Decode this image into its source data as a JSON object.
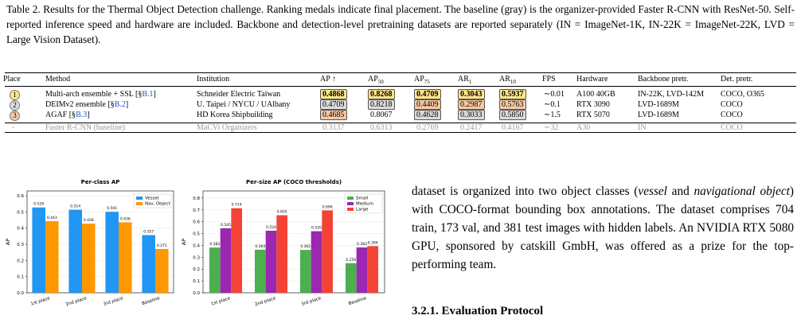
{
  "caption": "Table 2. Results for the Thermal Object Detection challenge. Ranking medals indicate final placement. The baseline (gray) is the organizer-provided Faster R-CNN with ResNet-50. Self-reported inference speed and hardware are included. Backbone and detection-level pretraining datasets are reported separately (IN = ImageNet-1K, IN-22K = ImageNet-22K, LVD = Large Vision Dataset).",
  "table": {
    "header": [
      {
        "text": "Place"
      },
      {
        "text": "Method"
      },
      {
        "text": "Institution"
      },
      {
        "text": "AP ↑"
      },
      {
        "text": "AP",
        "sub": "50"
      },
      {
        "text": "AP",
        "sub": "75"
      },
      {
        "text": "AR",
        "sub": "1"
      },
      {
        "text": "AR",
        "sub": "10"
      },
      {
        "text": "FPS"
      },
      {
        "text": "Hardware"
      },
      {
        "text": "Backbone pretr."
      },
      {
        "text": "Det. pretr."
      }
    ],
    "rows": [
      {
        "place": "1",
        "medal": "gold",
        "method": [
          "Multi-arch ensemble + SSL [§",
          "B.1",
          "]"
        ],
        "institution": "Schneider Electric Taiwan",
        "metrics": [
          "0.4868",
          "0.8268",
          "0.4709",
          "0.3043",
          "0.5937"
        ],
        "highlight": [
          "gold",
          "gold",
          "gold",
          "gold",
          "gold"
        ],
        "fps": "∼0.01",
        "hardware": "A100 40GB",
        "backbone": "IN-22K, LVD-142M",
        "det": "COCO, O365",
        "muted": false
      },
      {
        "place": "2",
        "medal": "silver",
        "method": [
          "DEIMv2 ensemble [§",
          "B.2",
          "]"
        ],
        "institution": "U. Taipei / NYCU / UAlbany",
        "metrics": [
          "0.4709",
          "0.8218",
          "0.4409",
          "0.2987",
          "0.5763"
        ],
        "highlight": [
          "silver",
          "silver",
          "bronze",
          "bronze",
          "bronze"
        ],
        "fps": "∼0.1",
        "hardware": "RTX 3090",
        "backbone": "LVD-1689M",
        "det": "COCO",
        "muted": false
      },
      {
        "place": "3",
        "medal": "bronze",
        "method": [
          "AGAF [§",
          "B.3",
          "]"
        ],
        "institution": "HD Korea Shipbuilding",
        "metrics": [
          "0.4685",
          "0.8067",
          "0.4628",
          "0.3033",
          "0.5850"
        ],
        "highlight": [
          "bronze",
          "none",
          "silver",
          "silver",
          "silver"
        ],
        "fps": "∼1.5",
        "hardware": "RTX 5070",
        "backbone": "LVD-1689M",
        "det": "COCO",
        "muted": false
      },
      {
        "place": "-",
        "medal": "none",
        "method": [
          "Faster R-CNN (baseline)"
        ],
        "institution": "MaCVi Organizers",
        "metrics": [
          "0.3137",
          "0.6313",
          "0.2769",
          "0.2417",
          "0.4167"
        ],
        "highlight": [
          "none",
          "none",
          "none",
          "none",
          "none"
        ],
        "fps": "∼32",
        "hardware": "A30",
        "backbone": "IN",
        "det": "COCO",
        "muted": true
      }
    ]
  },
  "chart_data": [
    {
      "type": "bar",
      "title": "Per-class AP",
      "y_label": "AP",
      "categories": [
        "1st place",
        "2nd place",
        "3rd place",
        "Baseline"
      ],
      "series": [
        {
          "name": "Vessel",
          "color": "#2196f3",
          "values": [
            0.528,
            0.514,
            0.501,
            0.357
          ]
        },
        {
          "name": "Nav. Object",
          "color": "#ff9800",
          "values": [
            0.443,
            0.428,
            0.436,
            0.271
          ]
        }
      ],
      "ylim": [
        0,
        0.63
      ],
      "yticks": [
        {
          "value": 0,
          "label": "0.0"
        },
        0.1,
        0.2,
        0.3,
        0.4,
        0.5,
        0.6
      ],
      "grid": true,
      "legend": "top-right"
    },
    {
      "type": "bar",
      "title": "Per-size AP (COCO thresholds)",
      "y_label": "AP",
      "categories": [
        "1st place",
        "2nd place",
        "3rd place",
        "Baseline"
      ],
      "series": [
        {
          "name": "Small",
          "color": "#4caf50",
          "values": [
            0.382,
            0.364,
            0.362,
            0.25
          ],
          "value_labels": [
            "0.382",
            "0.364",
            "0.362",
            "0.250"
          ]
        },
        {
          "name": "Medium",
          "color": "#9c27b0",
          "values": [
            0.545,
            0.524,
            0.52,
            0.383
          ],
          "value_labels": [
            "0.545",
            "0.524",
            "0.520",
            "0.383"
          ]
        },
        {
          "name": "Large",
          "color": "#f44336",
          "values": [
            0.714,
            0.655,
            0.696,
            0.394
          ],
          "value_labels": [
            "0.714",
            "0.655",
            "0.696",
            "0.394"
          ]
        }
      ],
      "ylim": [
        0,
        0.86
      ],
      "yticks": [
        {
          "value": 0,
          "label": "0.0"
        },
        0.1,
        0.2,
        0.3,
        0.4,
        0.5,
        0.6,
        0.7,
        0.8
      ],
      "grid": true,
      "legend": "top-right"
    }
  ],
  "body": {
    "paragraph": [
      {
        "text": "dataset is organized into two object classes (",
        "italic": false
      },
      {
        "text": "vessel",
        "italic": true
      },
      {
        "text": " and ",
        "italic": false
      },
      {
        "text": "navigational object",
        "italic": true
      },
      {
        "text": ") with COCO-format bounding box annotations. The dataset comprises 704 train, 173 val, and 381 test images with hidden labels. An NVIDIA RTX 5080 GPU, sponsored by catskill GmbH, was offered as a prize for the top-performing team.",
        "italic": false
      }
    ],
    "heading": "3.2.1. Evaluation Protocol"
  }
}
